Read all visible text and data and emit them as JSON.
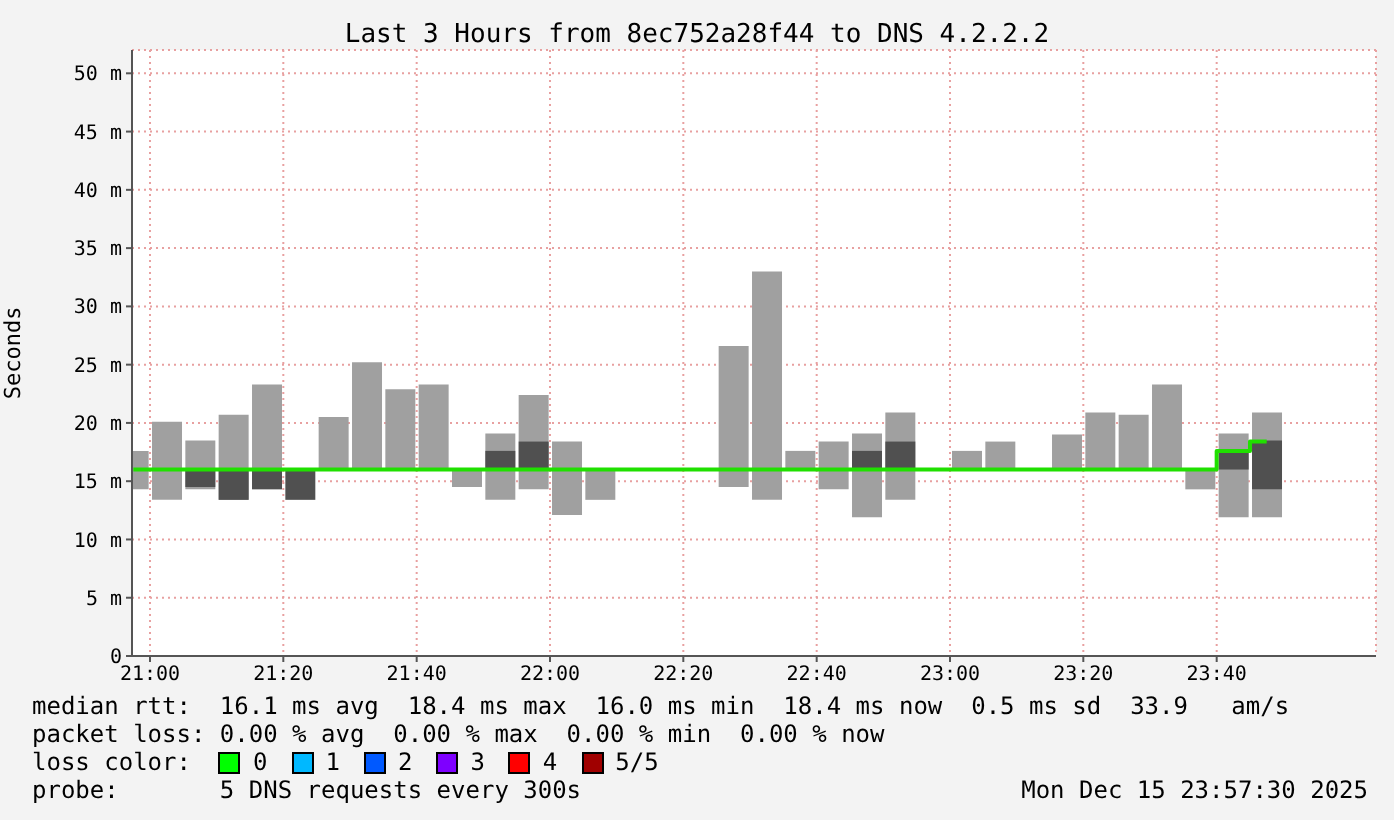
{
  "chart_data": {
    "type": "bar",
    "title": "Last 3 Hours from 8ec752a28f44 to DNS 4.2.2.2",
    "ylabel": "Seconds",
    "x": [
      20.9583,
      21.0417,
      21.125,
      21.2083,
      21.2917,
      21.375,
      21.4583,
      21.5417,
      21.625,
      21.7083,
      21.7917,
      21.875,
      21.9583,
      22.0417,
      22.125,
      22.2083,
      22.2917,
      22.375,
      22.4583,
      22.5417,
      22.625,
      22.7083,
      22.7917,
      22.875,
      22.9583,
      23.0417,
      23.125,
      23.2083,
      23.2917,
      23.375,
      23.4583,
      23.5417,
      23.625,
      23.7083,
      23.7917
    ],
    "series": [
      {
        "color": "#a0a0a0",
        "base": [
          14.3,
          13.4,
          14.3,
          13.4,
          14.3,
          null,
          16,
          16,
          16,
          16,
          14.5,
          13.4,
          14.3,
          12.1,
          13.4,
          null,
          null,
          null,
          14.5,
          13.4,
          16,
          14.3,
          11.9,
          13.4,
          null,
          16,
          16,
          null,
          16,
          16,
          16,
          16,
          14.3,
          11.9,
          11.9
        ],
        "values": [
          3.3,
          6.7,
          4.2,
          7.3,
          9.0,
          null,
          4.5,
          9.2,
          6.9,
          7.3,
          1.5,
          5.7,
          8.1,
          6.3,
          2.6,
          null,
          null,
          null,
          12.1,
          19.6,
          1.6,
          4.1,
          7.2,
          7.5,
          null,
          1.6,
          2.4,
          null,
          3.0,
          4.9,
          4.7,
          7.3,
          1.7,
          7.2,
          9.0
        ]
      },
      {
        "type": "bar",
        "color": "#505050",
        "base": [
          null,
          null,
          14.5,
          13.4,
          14.3,
          13.4,
          null,
          null,
          null,
          null,
          null,
          16,
          16,
          null,
          null,
          null,
          null,
          null,
          null,
          null,
          null,
          null,
          16,
          16,
          null,
          null,
          null,
          null,
          null,
          null,
          null,
          null,
          null,
          16,
          14.3
        ],
        "values": [
          null,
          null,
          1.5,
          2.6,
          1.7,
          2.6,
          null,
          null,
          null,
          null,
          null,
          1.6,
          2.4,
          null,
          null,
          null,
          null,
          null,
          null,
          null,
          null,
          null,
          1.6,
          2.4,
          null,
          null,
          null,
          null,
          null,
          null,
          null,
          null,
          null,
          1.6,
          4.2
        ]
      },
      {
        "type": "step",
        "color": "#20e000",
        "values": [
          16,
          16,
          16,
          16,
          16,
          16,
          16,
          16,
          16,
          16,
          16,
          16,
          16,
          16,
          16,
          16,
          16,
          16,
          16,
          16,
          16,
          16,
          16,
          16,
          16,
          16,
          16,
          16,
          16,
          16,
          16,
          16,
          16,
          17.6,
          18.4
        ]
      }
    ],
    "xlim": [
      20.955,
      24.065
    ],
    "xticks": [
      {
        "value": 21,
        "label": "21:00"
      },
      {
        "value": 21.3333,
        "label": "21:20"
      },
      {
        "value": 21.6667,
        "label": "21:40"
      },
      {
        "value": 22,
        "label": "22:00"
      },
      {
        "value": 22.3333,
        "label": "22:20"
      },
      {
        "value": 22.6667,
        "label": "22:40"
      },
      {
        "value": 23,
        "label": "23:00"
      },
      {
        "value": 23.3333,
        "label": "23:20"
      },
      {
        "value": 23.6667,
        "label": "23:40"
      }
    ],
    "ylim": [
      0,
      52
    ],
    "yticks": [
      0,
      {
        "value": 5,
        "label": "5 m"
      },
      {
        "value": 10,
        "label": "10 m"
      },
      {
        "value": 15,
        "label": "15 m"
      },
      {
        "value": 20,
        "label": "20 m"
      },
      {
        "value": 25,
        "label": "25 m"
      },
      {
        "value": 30,
        "label": "30 m"
      },
      {
        "value": 35,
        "label": "35 m"
      },
      {
        "value": 40,
        "label": "40 m"
      },
      {
        "value": 45,
        "label": "45 m"
      },
      {
        "value": 50,
        "label": "50 m"
      }
    ],
    "grid": true,
    "marker": "none",
    "line_style": "solid",
    "annotations": [
      "median rtt:  16.1 ms avg  18.4 ms max  16.0 ms min  18.4 ms now  0.5 ms sd  33.9   am/s",
      "packet loss: 0.00 % avg  0.00 % max  0.00 % min  0.00 % now",
      "loss color:",
      "0",
      "1",
      "2",
      "3",
      "4",
      "5/5",
      "probe:       5 DNS requests every 300s",
      "Mon Dec 15 23:57:30 2025"
    ]
  }
}
